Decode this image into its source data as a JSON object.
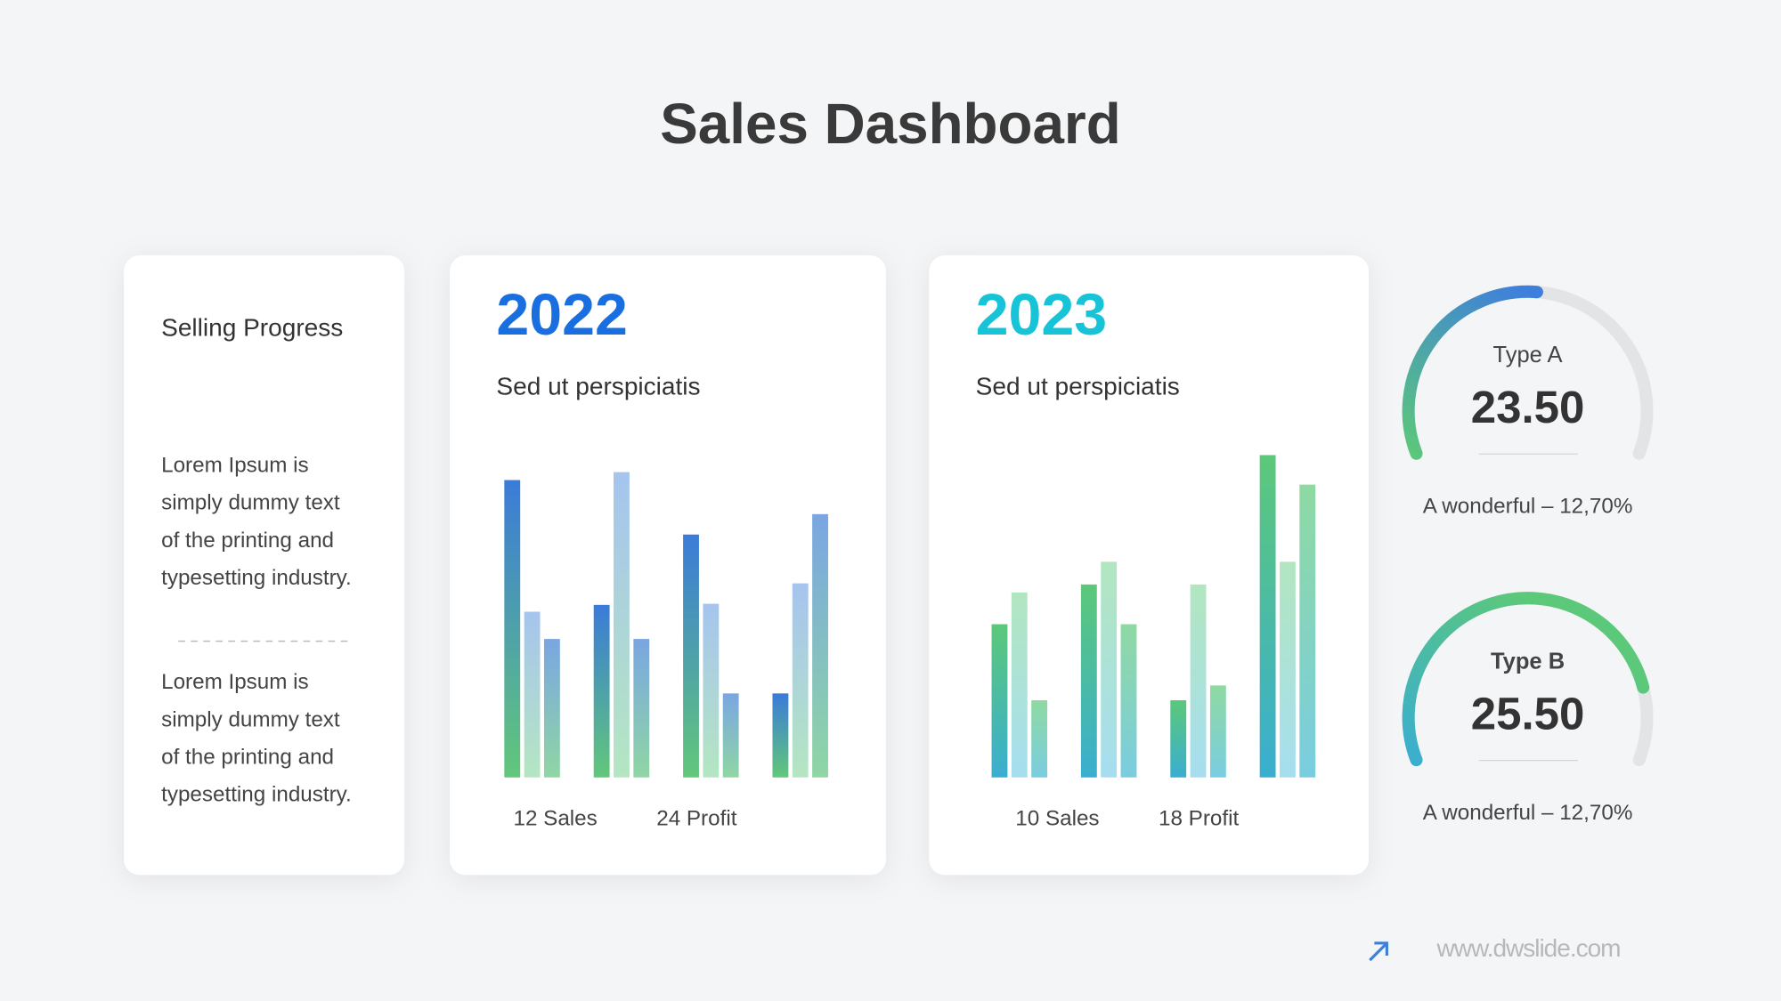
{
  "title": "Sales Dashboard",
  "left_card": {
    "heading": "Selling Progress",
    "paragraphs": [
      [
        "Lorem Ipsum is",
        "simply dummy text",
        "of the printing and",
        "typesetting industry."
      ],
      [
        "Lorem Ipsum is",
        "simply dummy text",
        "of the printing and",
        "typesetting industry."
      ]
    ]
  },
  "chart_data": [
    {
      "type": "bar",
      "title": "2022",
      "title_color": "#1a6fe0",
      "subtitle": "Sed ut perspiciatis",
      "annotations": [
        "12 Sales",
        "24 Profit"
      ],
      "categories": [
        null,
        null,
        null,
        null
      ],
      "ylim": [
        0,
        300
      ],
      "series": [
        {
          "colors": [
            "#3b7bd8",
            "#62c77a"
          ],
          "values": [
            262,
            152,
            214,
            74
          ]
        },
        {
          "colors": [
            "#a6c4ee",
            "#b4e6c2"
          ],
          "values": [
            146,
            269,
            153,
            171
          ]
        },
        {
          "colors": [
            "#7aa6e2",
            "#8fd6a4"
          ],
          "values": [
            122,
            122,
            74,
            232
          ]
        }
      ]
    },
    {
      "type": "bar",
      "title": "2023",
      "title_color": "#17c3d6",
      "subtitle": "Sed ut perspiciatis",
      "annotations": [
        "10 Sales",
        "18 Profit"
      ],
      "categories": [
        null,
        null,
        null,
        null
      ],
      "ylim": [
        0,
        300
      ],
      "series": [
        {
          "colors": [
            "#5cc87a",
            "#3aaed0"
          ],
          "values": [
            135,
            170,
            68,
            284
          ]
        },
        {
          "colors": [
            "#b2e6c0",
            "#a6def0"
          ],
          "values": [
            163,
            190,
            170,
            190
          ]
        },
        {
          "colors": [
            "#8fd9a2",
            "#7acde0"
          ],
          "values": [
            68,
            135,
            81,
            258
          ]
        }
      ]
    }
  ],
  "gauges": [
    {
      "label": "Type A",
      "value": "23.50",
      "caption": "A wonderful – 12,70%",
      "progress": 52,
      "colors": [
        "#3e7fdc",
        "#5cc87a"
      ]
    },
    {
      "label": "Type B",
      "value": "25.50",
      "caption": "A wonderful – 12,70%",
      "progress": 84,
      "colors": [
        "#5cc87a",
        "#3aaed0"
      ]
    }
  ],
  "footer": "www.dwslide.com"
}
